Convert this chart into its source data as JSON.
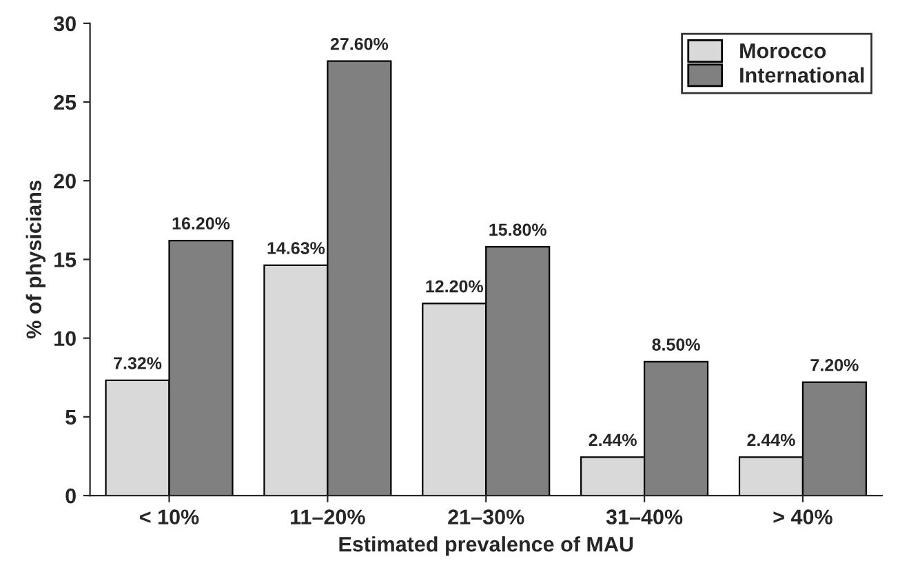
{
  "chart_data": {
    "type": "bar",
    "xlabel": "Estimated prevalence of MAU",
    "ylabel": "% of physicians",
    "categories": [
      "< 10%",
      "11–20%",
      "21–30%",
      "31–40%",
      "> 40%"
    ],
    "series": [
      {
        "name": "Morocco",
        "color": "#d9d9d9",
        "values": [
          7.32,
          14.63,
          12.2,
          2.44,
          2.44
        ],
        "value_labels": [
          "7.32%",
          "14.63%",
          "12.20%",
          "2.44%",
          "2.44%"
        ]
      },
      {
        "name": "International",
        "color": "#808080",
        "values": [
          16.2,
          27.6,
          15.8,
          8.5,
          7.2
        ],
        "value_labels": [
          "16.20%",
          "27.60%",
          "15.80%",
          "8.50%",
          "7.20%"
        ]
      }
    ],
    "ylim": [
      0,
      30
    ],
    "yticks": [
      0,
      5,
      10,
      15,
      20,
      25,
      30
    ],
    "grid": false,
    "legend": "top right"
  }
}
